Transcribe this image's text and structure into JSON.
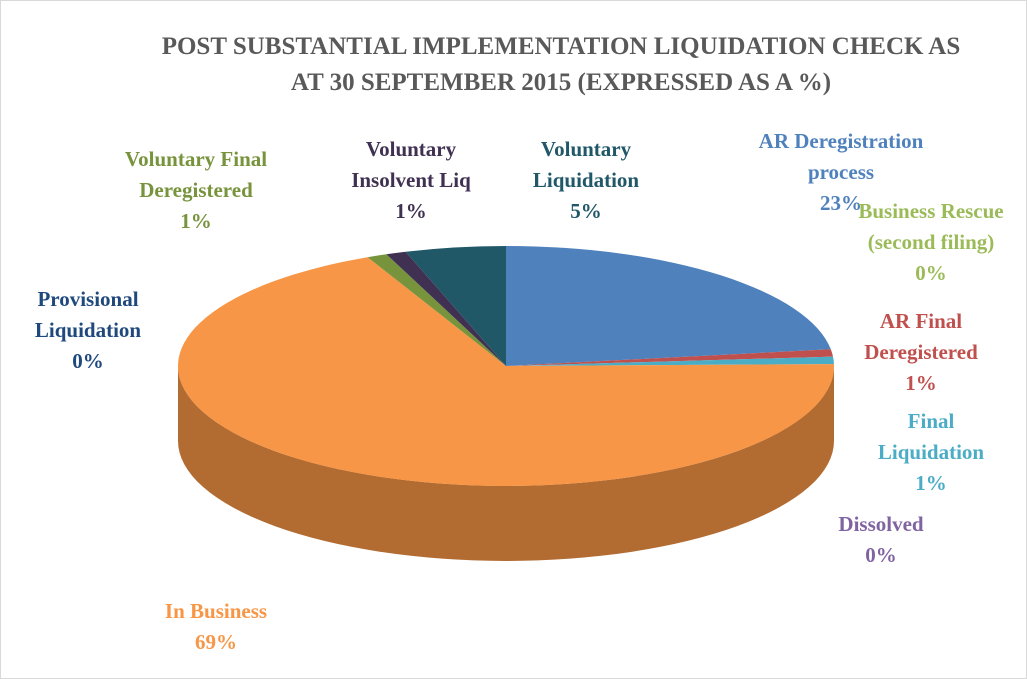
{
  "chart_data": {
    "type": "pie3d",
    "title": "POST SUBSTANTIAL IMPLEMENTATION LIQUIDATION CHECK AS AT 30 SEPTEMBER 2015 (EXPRESSED AS A %)",
    "categories": [
      "AR Deregistration process",
      "Business Rescue (second filing)",
      "AR Final Deregistered",
      "Final Liquidation",
      "Dissolved",
      "In Business",
      "Provisional Liquidation",
      "Voluntary Final Deregistered",
      "Voluntary Insolvent Liq",
      "Voluntary Liquidation"
    ],
    "values": [
      23,
      0,
      1,
      1,
      0,
      69,
      0,
      1,
      1,
      5
    ],
    "value_labels": [
      "23%",
      "0%",
      "1%",
      "1%",
      "0%",
      "69%",
      "0%",
      "1%",
      "1%",
      "5%"
    ],
    "colors": [
      "#4f81bd",
      "#9bbb59",
      "#c0504d",
      "#4bacc6",
      "#8064a2",
      "#f79646",
      "#1f497d",
      "#77933c",
      "#403152",
      "#215868"
    ]
  }
}
